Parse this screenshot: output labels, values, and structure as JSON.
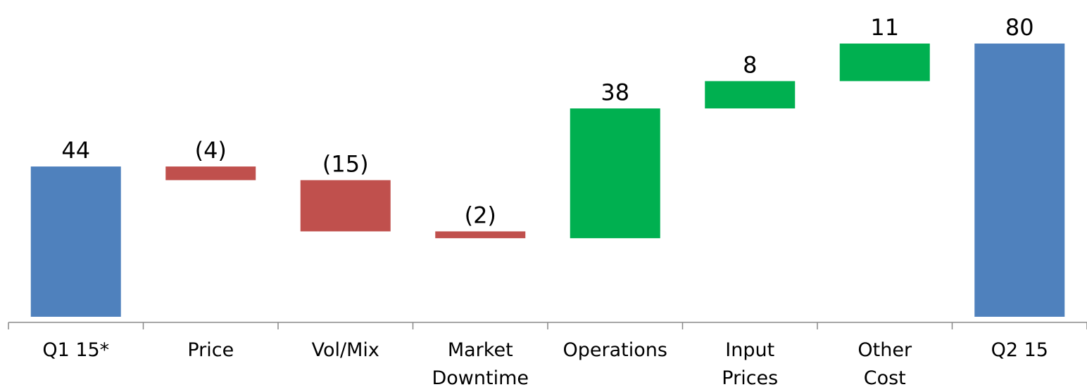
{
  "chart_data": {
    "type": "waterfall",
    "categories": [
      [
        "Q1 15*"
      ],
      [
        "Price"
      ],
      [
        "Vol/Mix"
      ],
      [
        "Market",
        "Downtime"
      ],
      [
        "Operations"
      ],
      [
        "Input",
        "Prices"
      ],
      [
        "Other",
        "Cost"
      ],
      [
        "Q2 15"
      ]
    ],
    "values": [
      44,
      -4,
      -15,
      -2,
      38,
      8,
      11,
      80
    ],
    "value_labels": [
      "44",
      "(4)",
      "(15)",
      "(2)",
      "38",
      "8",
      "11",
      "80"
    ],
    "is_total": [
      true,
      false,
      false,
      false,
      false,
      false,
      false,
      true
    ],
    "colors": {
      "total": "#4f81bd",
      "increase": "#00b050",
      "decrease": "#c0504d"
    }
  }
}
